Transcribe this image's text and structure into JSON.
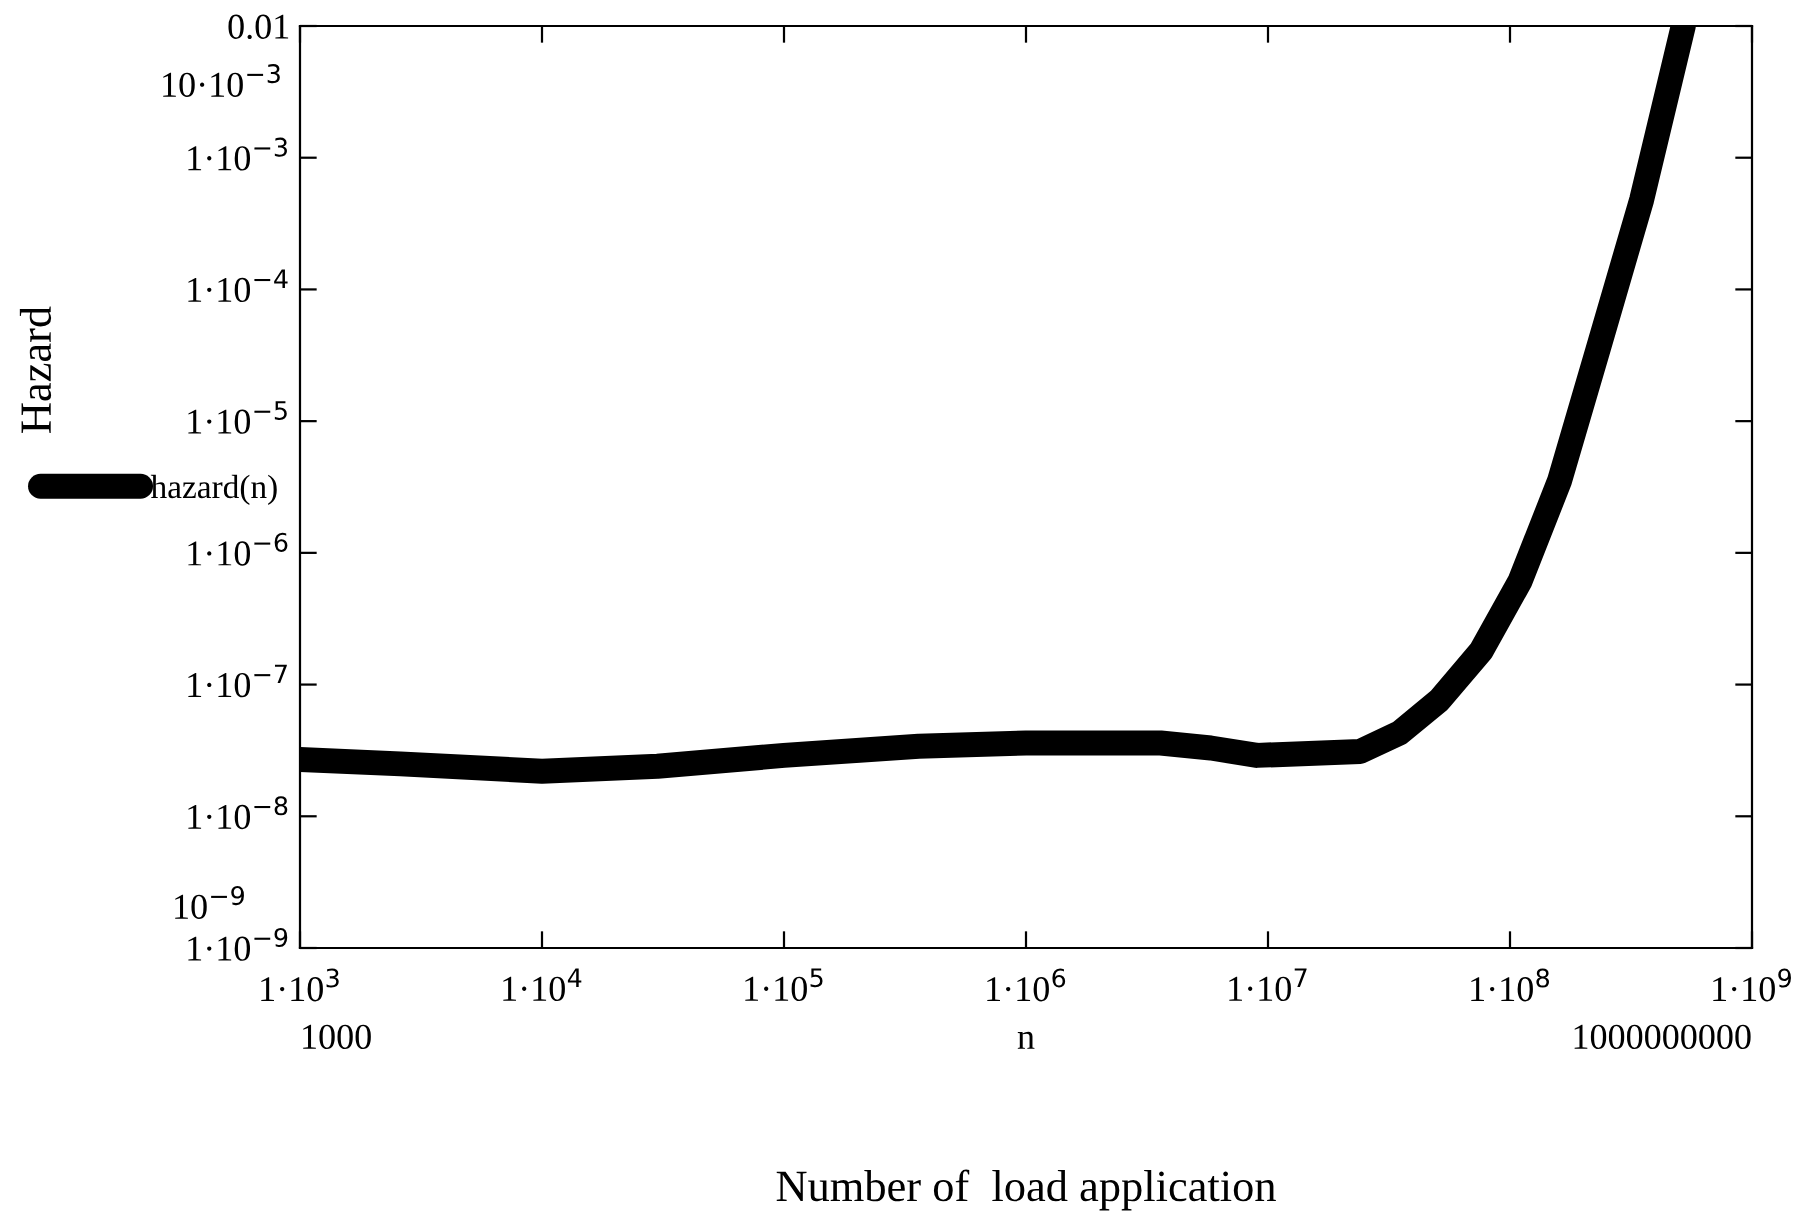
{
  "chart_data": {
    "type": "line",
    "xlabel": "Number of  load application",
    "ylabel": "Hazard",
    "log": "xy",
    "grid": false,
    "legend": "left",
    "line_style": "solid",
    "xlim": [
      1000,
      1000000000
    ],
    "ylim": [
      1e-09,
      0.01
    ],
    "xticks": [
      {
        "value": 1000,
        "label": "1·10$^{3}$"
      },
      {
        "value": 10000,
        "label": "1·10$^{4}$"
      },
      {
        "value": 100000,
        "label": "1·10$^{5}$"
      },
      {
        "value": 1000000,
        "label": "1·10$^{6}$"
      },
      {
        "value": 10000000,
        "label": "1·10$^{7}$"
      },
      {
        "value": 100000000,
        "label": "1·10$^{8}$"
      },
      {
        "value": 1000000000,
        "label": "1·10$^{9}$"
      }
    ],
    "yticks": [
      {
        "value": 1e-09,
        "label": "1·10$^{−9}$"
      },
      {
        "value": 1e-08,
        "label": "1·10$^{−8}$"
      },
      {
        "value": 1e-07,
        "label": "1·10$^{−7}$"
      },
      {
        "value": 1e-06,
        "label": "1·10$^{−6}$"
      },
      {
        "value": 1e-05,
        "label": "1·10$^{−5}$"
      },
      {
        "value": 0.0001,
        "label": "1·10$^{−4}$"
      },
      {
        "value": 0.001,
        "label": "1·10$^{−3}$"
      },
      0.01
    ],
    "annotations": [
      "10·10$^{−3}$",
      "10$^{−9}$",
      "1000",
      "n",
      "1000000000"
    ],
    "series": [
      {
        "name": "hazard(n)",
        "color": "#000000",
        "x": [
          1000,
          2600,
          10000,
          30000,
          100000,
          360000,
          1000000,
          3600000,
          5800000,
          9000000,
          24000000,
          35000000,
          51000000,
          76000000,
          110000000,
          160000000,
          230000000,
          350000000,
          460000000,
          520000000
        ],
        "values": [
          2.7e-08,
          2.5e-08,
          2.2e-08,
          2.4e-08,
          2.9e-08,
          3.4e-08,
          3.6e-08,
          3.6e-08,
          3.3e-08,
          2.9e-08,
          3.1e-08,
          4.3e-08,
          7.6e-08,
          1.8e-07,
          6.1e-07,
          3.5e-06,
          3.4e-05,
          0.00048,
          0.0039,
          0.01
        ]
      }
    ]
  }
}
